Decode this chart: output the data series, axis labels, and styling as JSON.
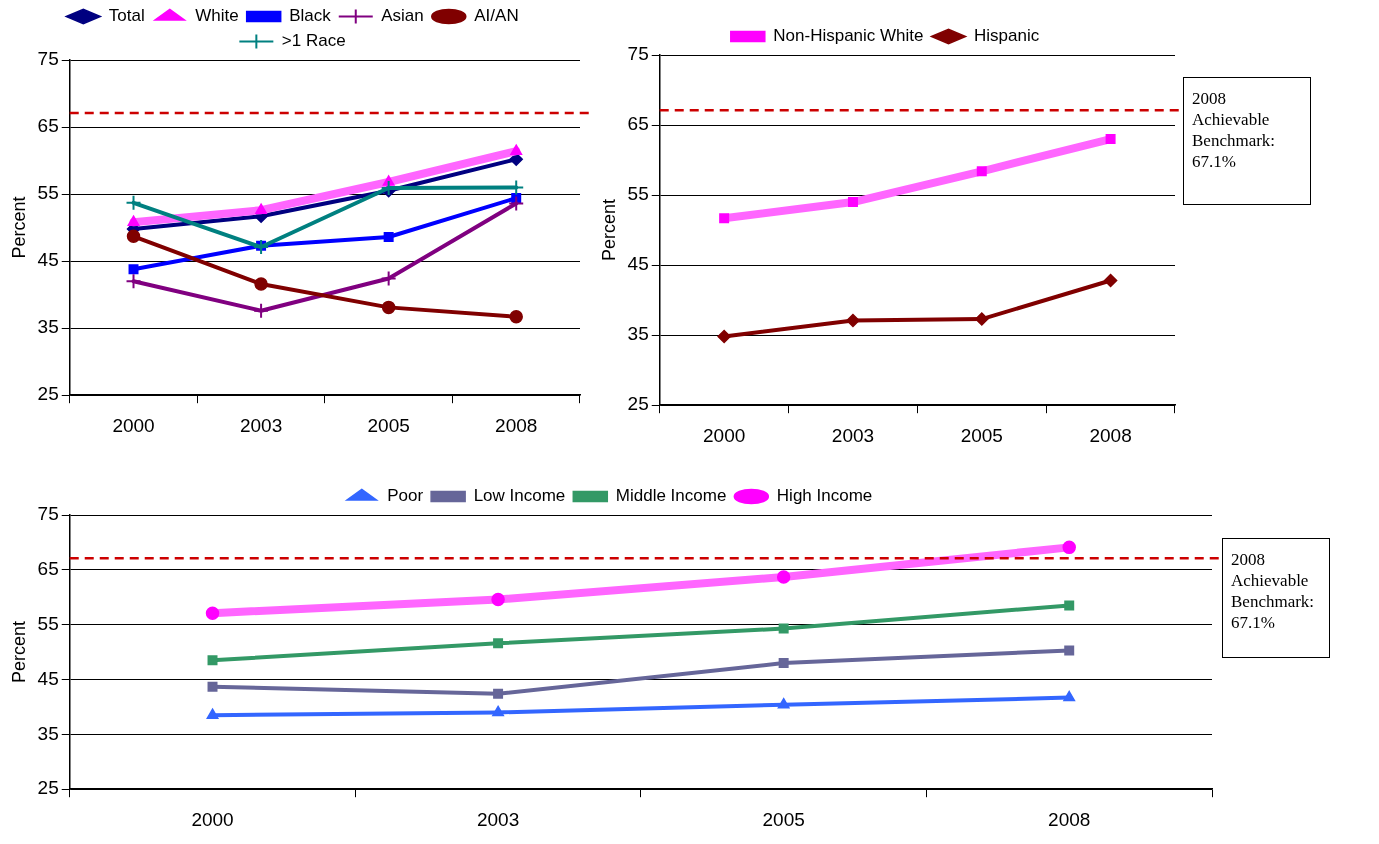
{
  "chart_data": [
    {
      "type": "line",
      "categories": [
        "2000",
        "2003",
        "2005",
        "2008"
      ],
      "ylabel": "Percent",
      "ylim": [
        25,
        75
      ],
      "yticks": [
        25,
        35,
        45,
        55,
        65,
        75
      ],
      "grid": "y",
      "legend": "top",
      "ref_lines": [
        {
          "axis": "y",
          "value": 67.1,
          "color": "#cc0000",
          "line_style": "dashed"
        }
      ],
      "series": [
        {
          "name": "Total",
          "color": "#000080",
          "marker": "diamond",
          "values": [
            49.8,
            51.7,
            55.5,
            60.2
          ]
        },
        {
          "name": "White",
          "color": "#ff66ff",
          "marker": "triangle",
          "values": [
            50.8,
            52.6,
            56.8,
            61.4
          ]
        },
        {
          "name": "Black",
          "color": "#0000ff",
          "marker": "square",
          "values": [
            43.8,
            47.3,
            48.6,
            54.4
          ]
        },
        {
          "name": "Asian",
          "color": "#800080",
          "marker": "cross",
          "values": [
            42.0,
            37.6,
            42.4,
            53.6
          ]
        },
        {
          "name": "AI/AN",
          "color": "#800000",
          "marker": "circle",
          "values": [
            48.7,
            41.6,
            38.1,
            36.7
          ]
        },
        {
          "name": ">1 Race",
          "color": "#008080",
          "marker": "cross",
          "values": [
            53.7,
            47.1,
            55.9,
            56.0
          ]
        }
      ]
    },
    {
      "type": "line",
      "categories": [
        "2000",
        "2003",
        "2005",
        "2008"
      ],
      "ylabel": "Percent",
      "ylim": [
        25,
        75
      ],
      "yticks": [
        25,
        35,
        45,
        55,
        65,
        75
      ],
      "grid": "y",
      "legend": "top",
      "ref_lines": [
        {
          "axis": "y",
          "value": 67.1,
          "color": "#cc0000",
          "line_style": "dashed",
          "label": "2008 Achievable Benchmark: 67.1%"
        }
      ],
      "series": [
        {
          "name": "Non-Hispanic White",
          "color": "#ff66ff",
          "marker": "square",
          "values": [
            51.7,
            54.0,
            58.4,
            63.0
          ]
        },
        {
          "name": "Hispanic",
          "color": "#800000",
          "marker": "diamond",
          "values": [
            34.8,
            37.1,
            37.3,
            42.8
          ]
        }
      ]
    },
    {
      "type": "line",
      "categories": [
        "2000",
        "2003",
        "2005",
        "2008"
      ],
      "ylabel": "Percent",
      "ylim": [
        25,
        75
      ],
      "yticks": [
        25,
        35,
        45,
        55,
        65,
        75
      ],
      "grid": "y",
      "legend": "top",
      "ref_lines": [
        {
          "axis": "y",
          "value": 67.1,
          "color": "#cc0000",
          "line_style": "dashed",
          "label": "2008 Achievable Benchmark: 67.1%"
        }
      ],
      "series": [
        {
          "name": "Poor",
          "color": "#3366ff",
          "marker": "triangle",
          "values": [
            38.5,
            39.0,
            40.4,
            41.7
          ]
        },
        {
          "name": "Low Income",
          "color": "#666699",
          "marker": "square",
          "values": [
            43.7,
            42.4,
            48.0,
            50.3
          ]
        },
        {
          "name": "Middle Income",
          "color": "#339966",
          "marker": "square",
          "values": [
            48.5,
            51.6,
            54.3,
            58.5
          ]
        },
        {
          "name": "High Income",
          "color": "#ff66ff",
          "marker": "circle",
          "values": [
            57.1,
            59.6,
            63.7,
            69.1
          ]
        }
      ]
    }
  ]
}
